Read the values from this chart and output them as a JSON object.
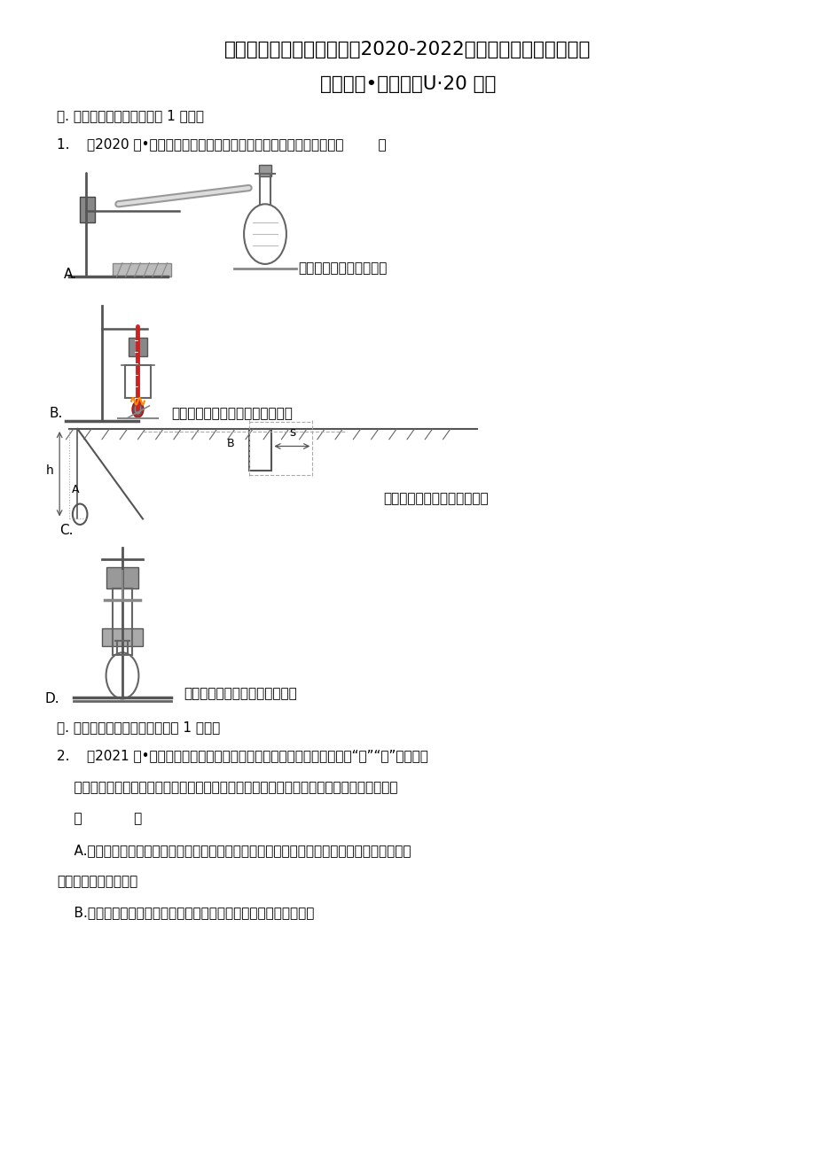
{
  "bg": "#ffffff",
  "title1": "浙江省杭州市滨江区三年（2020-2022）九年级上学期期末科学",
  "title2": "试题汇编•选择题（U·20 题）",
  "sec1": "一. 科学探究的基本方法（共 1 小题）",
  "q1": "1.    （2020 秋•滨江区期末）下列课本实验中，没有用到转换法的是（        ）",
  "A_text": "甲图研究氢气还原氧化铜",
  "B_text": "乙图研究不同食物所含能量的多少",
  "C_text": "丙图研究影响动能大小的因素",
  "D_text": "丁图研究影响酶催化作用的因素",
  "sec2": "二. 实验操作注意事项的探究（共 1 小题）",
  "q2_line1": "2.    （2021 秋•滨江区期末）在科学实验和生活中，有许多涉及操作上的“先”“后”问题，如",
  "q2_line2": "    果顺序颠倒，就会影响实验效果或导致事故的发生。下列描述的操作中，先后顺序正确的是",
  "q2_line3": "    （            ）",
  "q2_A1": "    A.探究温度对唾液淀粉酶催化作用的影响时，先将唾液和淀粉溶液混合并等分为若干份，然后",
  "q2_A2": "分别在不同温度下水浴",
  "q2_B": "    B.氢气还原氧化铜时，先对装有氧化铜的试管加热，然后通入氢气"
}
